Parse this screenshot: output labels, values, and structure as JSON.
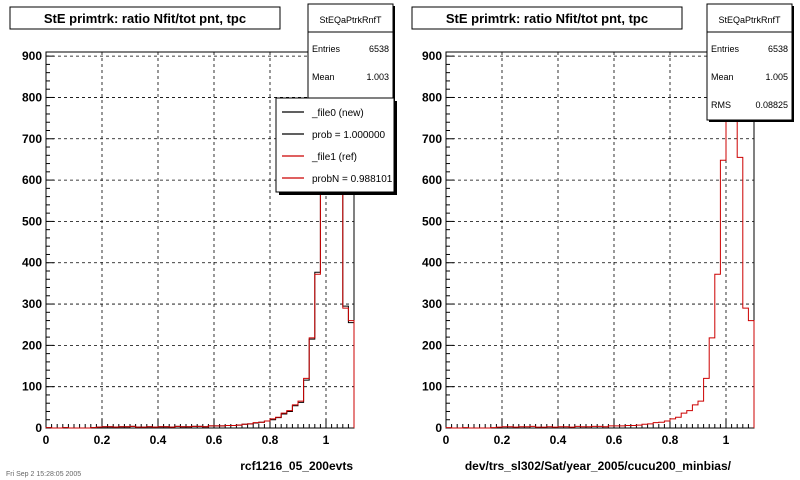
{
  "colors": {
    "new": "#000000",
    "ref": "#cc0000",
    "grid": "#000000",
    "background": "#ffffff"
  },
  "footer_text": "Fri Sep  2 15:28:05 2005",
  "chart_data": [
    {
      "type": "histogram",
      "title": "StE primtrk: ratio Nfit/tot pnt, tpc",
      "xlabel": "rcf1216_05_200evts",
      "ylabel": "",
      "xlim": [
        0,
        1.1
      ],
      "ylim": [
        0,
        910
      ],
      "grid": true,
      "x_ticks": [
        0,
        0.2,
        0.4,
        0.6,
        0.8,
        1
      ],
      "y_ticks": [
        0,
        100,
        200,
        300,
        400,
        500,
        600,
        700,
        800,
        900
      ],
      "stats": {
        "name": "StEQaPtrkRnfT",
        "entries_label": "Entries",
        "entries_value": "6538",
        "mean_label": "Mean",
        "mean_value": "1.003"
      },
      "legend": {
        "placement": "top-right",
        "entries": [
          {
            "label": "_file0 (new)",
            "color": "#000000"
          },
          {
            "label": "prob = 1.000000",
            "color": "#000000"
          },
          {
            "label": "_file1 (ref)",
            "color": "#cc0000"
          },
          {
            "label": "probN = 0.988101",
            "color": "#cc0000"
          }
        ]
      },
      "bin_edges": [
        0.0,
        0.02,
        0.04,
        0.06,
        0.08,
        0.1,
        0.12,
        0.14,
        0.16,
        0.18,
        0.2,
        0.22,
        0.24,
        0.26,
        0.28,
        0.3,
        0.32,
        0.34,
        0.36,
        0.38,
        0.4,
        0.42,
        0.44,
        0.46,
        0.48,
        0.5,
        0.52,
        0.54,
        0.56,
        0.58,
        0.6,
        0.62,
        0.64,
        0.66,
        0.68,
        0.7,
        0.72,
        0.74,
        0.76,
        0.78,
        0.8,
        0.82,
        0.84,
        0.86,
        0.88,
        0.9,
        0.92,
        0.94,
        0.96,
        0.98,
        1.0,
        1.02,
        1.04,
        1.06,
        1.08,
        1.1
      ],
      "series": [
        {
          "values": [
            1,
            0,
            0,
            1,
            0,
            0,
            0,
            0,
            1,
            2,
            3,
            3,
            2,
            3,
            3,
            4,
            2,
            2,
            3,
            2,
            3,
            3,
            2,
            4,
            3,
            3,
            4,
            4,
            3,
            5,
            5,
            5,
            6,
            6,
            7,
            9,
            10,
            12,
            14,
            17,
            20,
            25,
            34,
            40,
            54,
            62,
            116,
            215,
            377,
            650,
            890,
            862,
            650,
            295,
            255
          ]
        },
        {
          "values": [
            1,
            0,
            0,
            1,
            0,
            0,
            0,
            0,
            1,
            2,
            3,
            3,
            2,
            3,
            3,
            4,
            2,
            2,
            3,
            2,
            3,
            3,
            2,
            4,
            3,
            3,
            4,
            4,
            3,
            5,
            5,
            5,
            6,
            6,
            7,
            9,
            10,
            13,
            14,
            17,
            22,
            26,
            36,
            42,
            56,
            65,
            120,
            218,
            372,
            648,
            885,
            866,
            655,
            290,
            260
          ]
        }
      ]
    },
    {
      "type": "histogram",
      "title": "StE primtrk: ratio Nfit/tot pnt, tpc",
      "xlabel": "dev/trs_sl302/Sat/year_2005/cucu200_minbias/",
      "ylabel": "",
      "xlim": [
        0,
        1.1
      ],
      "ylim": [
        0,
        910
      ],
      "grid": true,
      "x_ticks": [
        0,
        0.2,
        0.4,
        0.6,
        0.8,
        1
      ],
      "y_ticks": [
        0,
        100,
        200,
        300,
        400,
        500,
        600,
        700,
        800,
        900
      ],
      "stats": {
        "name": "StEQaPtrkRnfT",
        "entries_label": "Entries",
        "entries_value": "6538",
        "mean_label": "Mean",
        "mean_value": "1.005",
        "rms_label": "RMS",
        "rms_value": "0.08825"
      },
      "bin_edges": [
        0.0,
        0.02,
        0.04,
        0.06,
        0.08,
        0.1,
        0.12,
        0.14,
        0.16,
        0.18,
        0.2,
        0.22,
        0.24,
        0.26,
        0.28,
        0.3,
        0.32,
        0.34,
        0.36,
        0.38,
        0.4,
        0.42,
        0.44,
        0.46,
        0.48,
        0.5,
        0.52,
        0.54,
        0.56,
        0.58,
        0.6,
        0.62,
        0.64,
        0.66,
        0.68,
        0.7,
        0.72,
        0.74,
        0.76,
        0.78,
        0.8,
        0.82,
        0.84,
        0.86,
        0.88,
        0.9,
        0.92,
        0.94,
        0.96,
        0.98,
        1.0,
        1.02,
        1.04,
        1.06,
        1.08,
        1.1
      ],
      "series": [
        {
          "values": [
            1,
            0,
            0,
            1,
            0,
            0,
            0,
            0,
            1,
            2,
            3,
            3,
            2,
            3,
            3,
            4,
            2,
            2,
            3,
            2,
            3,
            3,
            2,
            4,
            3,
            3,
            4,
            4,
            3,
            5,
            5,
            5,
            6,
            6,
            7,
            9,
            10,
            13,
            14,
            17,
            22,
            26,
            36,
            42,
            56,
            65,
            120,
            218,
            372,
            648,
            885,
            866,
            655,
            290,
            260
          ]
        }
      ]
    }
  ]
}
